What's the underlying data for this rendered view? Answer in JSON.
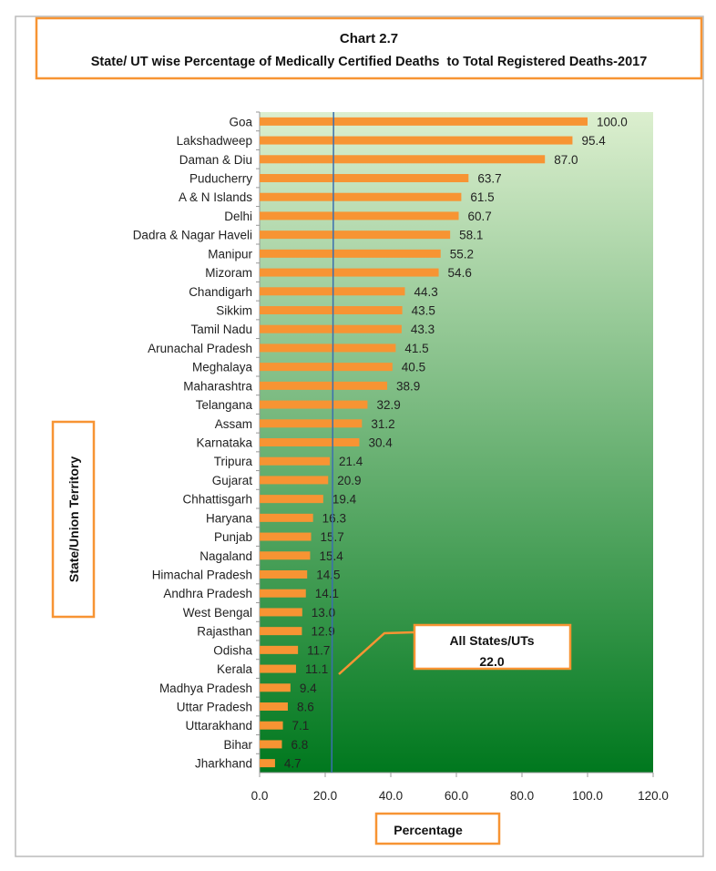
{
  "chart_data": {
    "type": "bar",
    "orientation": "horizontal",
    "title": "Chart 2.7",
    "subtitle": "State/ UT wise Percentage of Medically Certified Deaths  to Total Registered Deaths-2017",
    "xlabel": "Percentage",
    "ylabel": "State/Union Territory",
    "xlim": [
      0,
      120
    ],
    "xticks": [
      "0.0",
      "20.0",
      "40.0",
      "60.0",
      "80.0",
      "100.0",
      "120.0"
    ],
    "grid": false,
    "categories": [
      "Goa",
      "Lakshadweep",
      "Daman & Diu",
      "Puducherry",
      "A & N Islands",
      "Delhi",
      "Dadra & Nagar Haveli",
      "Manipur",
      "Mizoram",
      "Chandigarh",
      "Sikkim",
      "Tamil Nadu",
      "Arunachal Pradesh",
      "Meghalaya",
      "Maharashtra",
      "Telangana",
      "Assam",
      "Karnataka",
      "Tripura",
      "Gujarat",
      "Chhattisgarh",
      "Haryana",
      "Punjab",
      "Nagaland",
      "Himachal Pradesh",
      "Andhra Pradesh",
      "West Bengal",
      "Rajasthan",
      "Odisha",
      "Kerala",
      "Madhya Pradesh",
      "Uttar Pradesh",
      "Uttarakhand",
      "Bihar",
      "Jharkhand"
    ],
    "values": [
      100.0,
      95.4,
      87.0,
      63.7,
      61.5,
      60.7,
      58.1,
      55.2,
      54.6,
      44.3,
      43.5,
      43.3,
      41.5,
      40.5,
      38.9,
      32.9,
      31.2,
      30.4,
      21.4,
      20.9,
      19.4,
      16.3,
      15.7,
      15.4,
      14.5,
      14.1,
      13.0,
      12.9,
      11.7,
      11.1,
      9.4,
      8.6,
      7.1,
      6.8,
      4.7
    ],
    "data_labels": [
      "100.0",
      "95.4",
      "87.0",
      "63.7",
      "61.5",
      "60.7",
      "58.1",
      "55.2",
      "54.6",
      "44.3",
      "43.5",
      "43.3",
      "41.5",
      "40.5",
      "38.9",
      "32.9",
      "31.2",
      "30.4",
      "21.4",
      "20.9",
      "19.4",
      "16.3",
      "15.7",
      "15.4",
      "14.5",
      "14.1",
      "13.0",
      "12.9",
      "11.7",
      "11.1",
      "9.4",
      "8.6",
      "7.1",
      "6.8",
      "4.7"
    ],
    "reference_line": {
      "value": 22.0,
      "label": "All States/UTs",
      "value_label": "22.0"
    },
    "colors": {
      "bar": "#f79433",
      "frame": "#f79433",
      "reference_line": "#3b6fb0",
      "bg_top": "#dcefcf",
      "bg_bottom": "#00781e"
    }
  }
}
